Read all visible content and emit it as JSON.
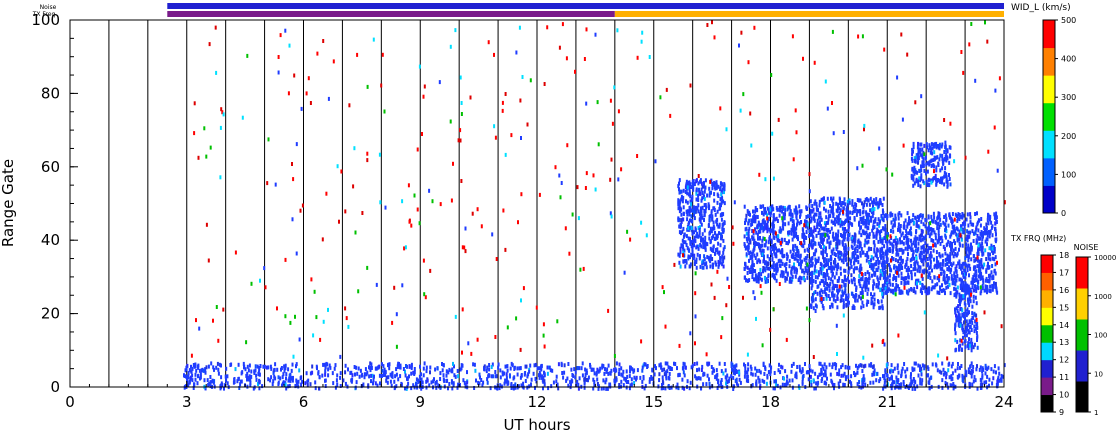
{
  "strip": {
    "noise_label": "Noise",
    "txfreq_label": "TX Freq"
  },
  "chart_data": {
    "type": "heatmap",
    "title": "",
    "xlabel": "UT hours",
    "ylabel": "Range Gate",
    "xlim": [
      0,
      24
    ],
    "ylim": [
      0,
      100
    ],
    "x_ticks": [
      "0",
      "3",
      "6",
      "9",
      "12",
      "15",
      "18",
      "21",
      "24"
    ],
    "y_ticks": [
      "0",
      "20",
      "40",
      "60",
      "80",
      "100"
    ],
    "hour_separators": [
      1,
      2,
      3,
      4,
      5,
      6,
      7,
      8,
      9,
      10,
      11,
      12,
      13,
      14,
      15,
      16,
      17,
      18,
      19,
      20,
      21,
      22,
      23
    ],
    "colorbars": {
      "width": {
        "label": "WID_L (km/s)",
        "ticks": [
          "0",
          "100",
          "200",
          "300",
          "400",
          "500"
        ],
        "colors": [
          "#0000c8",
          "#0060ff",
          "#00e0ff",
          "#00e000",
          "#ffff00",
          "#ff8000",
          "#ff0000"
        ]
      },
      "tx_freq": {
        "label": "TX FRQ (MHz)",
        "ticks": [
          "9",
          "10",
          "11",
          "12",
          "13",
          "14",
          "15",
          "16",
          "17",
          "18"
        ],
        "colors": [
          "#000000",
          "#7a1b8a",
          "#2020d0",
          "#00d8ff",
          "#00c000",
          "#ffff00",
          "#ffb000",
          "#ff6000",
          "#ff0000"
        ]
      },
      "noise": {
        "label": "NOISE",
        "ticks": [
          "1",
          "10",
          "100",
          "1000",
          "10000"
        ],
        "colors": [
          "#000000",
          "#2020d0",
          "#00c000",
          "#ffd000",
          "#ff0000"
        ]
      }
    },
    "series": [
      {
        "type": "low-range band",
        "x_range": [
          2.9,
          24.0
        ],
        "y_range": [
          0,
          7
        ],
        "dominant_color": "#1f3cff"
      },
      {
        "type": "echo cluster",
        "x_range": [
          15.6,
          16.8
        ],
        "y_range": [
          33,
          57
        ],
        "dominant_color": "#1f3cff"
      },
      {
        "type": "echo cluster",
        "x_range": [
          17.3,
          19.0
        ],
        "y_range": [
          29,
          50
        ],
        "dominant_color": "#1f3cff"
      },
      {
        "type": "echo cluster",
        "x_range": [
          19.0,
          20.9
        ],
        "y_range": [
          22,
          52
        ],
        "dominant_color": "#1f3cff"
      },
      {
        "type": "echo cluster",
        "x_range": [
          20.9,
          23.8
        ],
        "y_range": [
          26,
          48
        ],
        "dominant_color": "#1f3cff"
      },
      {
        "type": "echo cluster",
        "x_range": [
          21.6,
          22.6
        ],
        "y_range": [
          55,
          67
        ],
        "dominant_color": "#1f3cff"
      },
      {
        "type": "echo cluster",
        "x_range": [
          22.7,
          23.3
        ],
        "y_range": [
          10,
          28
        ],
        "dominant_color": "#1f3cff"
      }
    ],
    "tx_freq_strip": [
      {
        "x_range": [
          2.5,
          14.0
        ],
        "color": "#7a1b8a"
      },
      {
        "x_range": [
          14.0,
          24.0
        ],
        "color": "#ffb000"
      }
    ],
    "noise_strip": {
      "x_range": [
        2.5,
        24.0
      ],
      "color": "#2020d0"
    }
  }
}
